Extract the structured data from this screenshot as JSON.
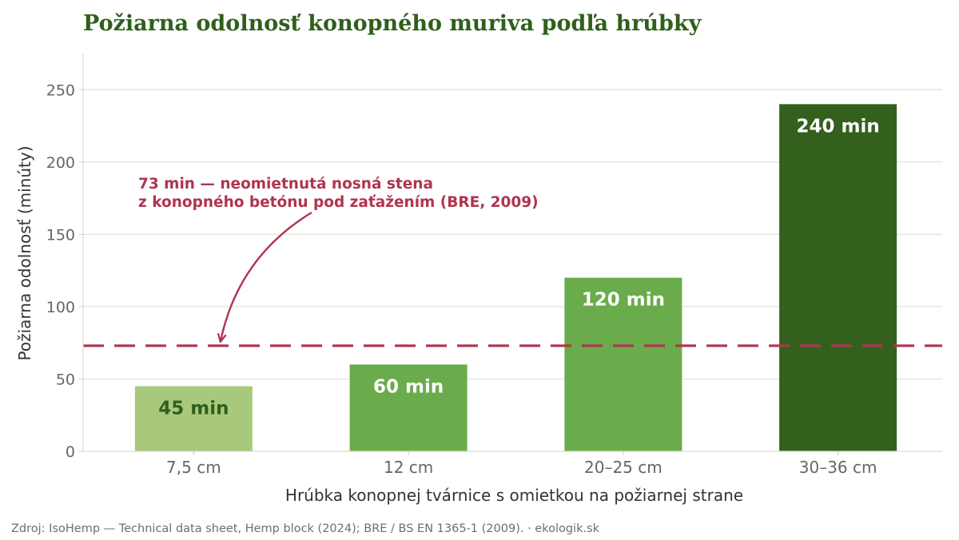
{
  "chart_data": {
    "type": "bar",
    "title": "Požiarna odolnosť konopného muriva podľa hrúbky",
    "xlabel": "Hrúbka konopnej tvárnice s omietkou na požiarnej strane",
    "ylabel": "Požiarna odolnosť (minúty)",
    "categories": [
      "7,5 cm",
      "12 cm",
      "20–25 cm",
      "30–36 cm"
    ],
    "values": [
      45,
      60,
      120,
      240
    ],
    "value_labels": [
      "45 min",
      "60 min",
      "120 min",
      "240 min"
    ],
    "bar_colors": [
      "#a8c97c",
      "#6aab4b",
      "#6aab4b",
      "#33601c"
    ],
    "value_label_colors": [
      "#2f5f1c",
      "#ffffff",
      "#ffffff",
      "#ffffff"
    ],
    "ylim": [
      0,
      275
    ],
    "yticks": [
      0,
      50,
      100,
      150,
      200,
      250
    ],
    "grid": "horizontal",
    "reference_line": {
      "value": 73,
      "color": "#b0344e",
      "annotation_lines": [
        "73 min — neomietnutá nosná stena",
        "z konopného betónu pod zaťažením (BRE, 2009)"
      ]
    },
    "source": "Zdroj: IsoHemp — Technical data sheet, Hemp block (2024); BRE / BS EN 1365-1 (2009).  ·  ekologik.sk"
  }
}
